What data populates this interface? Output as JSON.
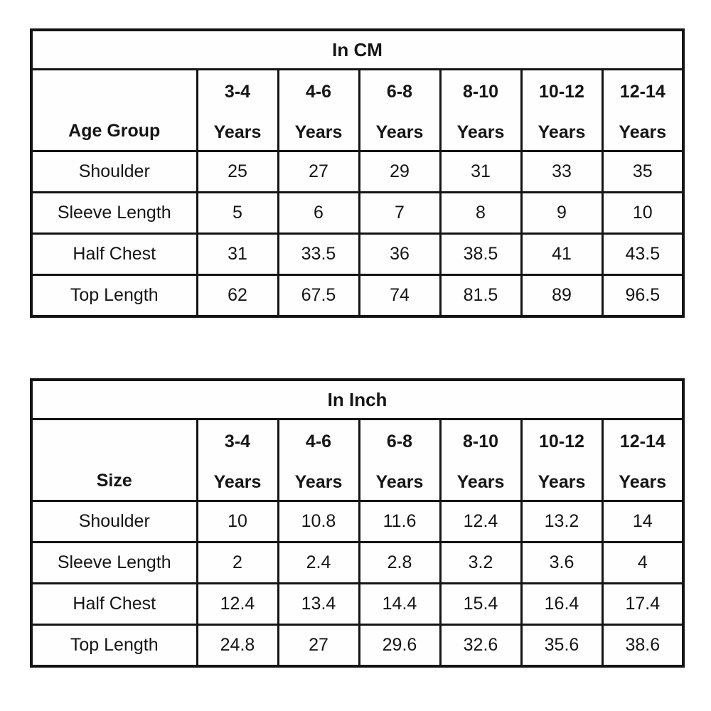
{
  "colors": {
    "background": "#ffffff",
    "border": "#141414",
    "text": "#151515"
  },
  "tables": [
    {
      "title": "In CM",
      "corner_label": "Age Group",
      "col_headers": [
        {
          "range": "3-4",
          "unit": "Years"
        },
        {
          "range": "4-6",
          "unit": "Years"
        },
        {
          "range": "6-8",
          "unit": "Years"
        },
        {
          "range": "8-10",
          "unit": "Years"
        },
        {
          "range": "10-12",
          "unit": "Years"
        },
        {
          "range": "12-14",
          "unit": "Years"
        }
      ],
      "rows": [
        {
          "label": "Shoulder",
          "values": [
            "25",
            "27",
            "29",
            "31",
            "33",
            "35"
          ]
        },
        {
          "label": "Sleeve Length",
          "values": [
            "5",
            "6",
            "7",
            "8",
            "9",
            "10"
          ]
        },
        {
          "label": "Half Chest",
          "values": [
            "31",
            "33.5",
            "36",
            "38.5",
            "41",
            "43.5"
          ]
        },
        {
          "label": "Top Length",
          "values": [
            "62",
            "67.5",
            "74",
            "81.5",
            "89",
            "96.5"
          ]
        }
      ]
    },
    {
      "title": "In Inch",
      "corner_label": "Size",
      "col_headers": [
        {
          "range": "3-4",
          "unit": "Years"
        },
        {
          "range": "4-6",
          "unit": "Years"
        },
        {
          "range": "6-8",
          "unit": "Years"
        },
        {
          "range": "8-10",
          "unit": "Years"
        },
        {
          "range": "10-12",
          "unit": "Years"
        },
        {
          "range": "12-14",
          "unit": "Years"
        }
      ],
      "rows": [
        {
          "label": "Shoulder",
          "values": [
            "10",
            "10.8",
            "11.6",
            "12.4",
            "13.2",
            "14"
          ]
        },
        {
          "label": "Sleeve Length",
          "values": [
            "2",
            "2.4",
            "2.8",
            "3.2",
            "3.6",
            "4"
          ]
        },
        {
          "label": "Half Chest",
          "values": [
            "12.4",
            "13.4",
            "14.4",
            "15.4",
            "16.4",
            "17.4"
          ]
        },
        {
          "label": "Top Length",
          "values": [
            "24.8",
            "27",
            "29.6",
            "32.6",
            "35.6",
            "38.6"
          ]
        }
      ]
    }
  ]
}
